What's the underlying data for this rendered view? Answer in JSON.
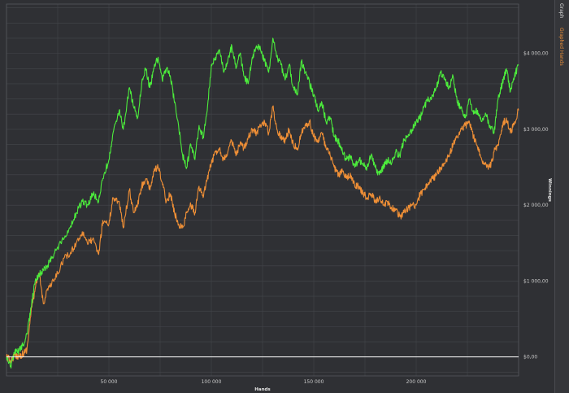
{
  "sidebar": {
    "tabs": [
      {
        "label": "Graph",
        "color": "#d8d8d8"
      },
      {
        "label": "Graphed Hands",
        "color": "#f0923a"
      }
    ]
  },
  "colors": {
    "background": "#2f3034",
    "grid": "#44464b",
    "series_green": "#4cec3c",
    "series_orange": "#ef8f36",
    "zero_line": "#ffffff"
  },
  "chart_data": {
    "type": "line",
    "title": "",
    "xlabel": "Hands",
    "ylabel": "Winnings",
    "xlim": [
      0,
      250000
    ],
    "ylim": [
      -250,
      4650
    ],
    "x_ticks": [
      50000,
      100000,
      150000,
      200000
    ],
    "x_tick_labels": [
      "50 000",
      "100 000",
      "150 000",
      "200 000"
    ],
    "y_ticks": [
      0,
      1000,
      2000,
      3000,
      4000
    ],
    "y_tick_labels": [
      "$0,00",
      "$1 000,00",
      "$2 000,00",
      "$3 000,00",
      "$4 000,00"
    ],
    "grid": true,
    "reference_line_y": 0,
    "series": [
      {
        "color": "#4cec3c",
        "x": [
          0,
          2000,
          4000,
          6000,
          8000,
          10000,
          12000,
          14000,
          16000,
          18000,
          20000,
          22000,
          25000,
          28000,
          31000,
          34000,
          37000,
          40000,
          42000,
          45000,
          47000,
          50000,
          52000,
          55000,
          57000,
          60000,
          62000,
          64000,
          66000,
          68000,
          70000,
          72000,
          74000,
          76000,
          78000,
          80000,
          82000,
          84000,
          86000,
          88000,
          90000,
          92000,
          94000,
          96000,
          98000,
          100000,
          102000,
          104000,
          106000,
          108000,
          110000,
          112000,
          114000,
          116000,
          118000,
          120000,
          122000,
          124000,
          126000,
          128000,
          130000,
          132000,
          134000,
          136000,
          138000,
          140000,
          142000,
          144000,
          146000,
          148000,
          150000,
          152000,
          154000,
          156000,
          158000,
          160000,
          162000,
          164000,
          166000,
          168000,
          170000,
          172000,
          174000,
          176000,
          178000,
          180000,
          182000,
          184000,
          186000,
          188000,
          190000,
          192000,
          194000,
          196000,
          198000,
          200000,
          202000,
          204000,
          206000,
          208000,
          210000,
          212000,
          214000,
          216000,
          218000,
          220000,
          222000,
          224000,
          226000,
          228000,
          230000,
          232000,
          234000,
          236000,
          238000,
          240000,
          242000,
          244000,
          246000,
          248000,
          250000
        ],
        "values": [
          0,
          -120,
          50,
          80,
          150,
          300,
          650,
          1000,
          1100,
          1150,
          1200,
          1300,
          1450,
          1550,
          1700,
          1900,
          2050,
          2000,
          2150,
          2050,
          2350,
          2600,
          2950,
          3250,
          3000,
          3550,
          3300,
          3150,
          3600,
          3800,
          3550,
          3800,
          3950,
          3650,
          3800,
          3700,
          3350,
          3050,
          2650,
          2500,
          2800,
          2600,
          3050,
          2900,
          3250,
          3850,
          3950,
          4050,
          3750,
          3900,
          4100,
          3800,
          4000,
          3700,
          3600,
          3950,
          4100,
          4050,
          3900,
          3750,
          4200,
          3950,
          3850,
          3650,
          3850,
          3550,
          3450,
          3900,
          3750,
          3600,
          3450,
          3250,
          3350,
          3100,
          3150,
          2900,
          2850,
          2700,
          2600,
          2650,
          2500,
          2600,
          2550,
          2500,
          2650,
          2500,
          2400,
          2500,
          2600,
          2550,
          2700,
          2650,
          2850,
          2900,
          3000,
          3100,
          3150,
          3300,
          3400,
          3450,
          3550,
          3750,
          3650,
          3550,
          3700,
          3350,
          3300,
          3150,
          3400,
          3200,
          3250,
          3100,
          3200,
          3050,
          2950,
          3400,
          3600,
          3800,
          3500,
          3700,
          3850
        ]
      },
      {
        "color": "#ef8f36",
        "x": [
          0,
          2000,
          4000,
          6000,
          8000,
          10000,
          12000,
          14000,
          16000,
          18000,
          20000,
          22000,
          25000,
          28000,
          31000,
          34000,
          37000,
          40000,
          42000,
          45000,
          47000,
          50000,
          52000,
          55000,
          57000,
          60000,
          62000,
          64000,
          66000,
          68000,
          70000,
          72000,
          74000,
          76000,
          78000,
          80000,
          82000,
          84000,
          86000,
          88000,
          90000,
          92000,
          94000,
          96000,
          98000,
          100000,
          102000,
          104000,
          106000,
          108000,
          110000,
          112000,
          114000,
          116000,
          118000,
          120000,
          122000,
          124000,
          126000,
          128000,
          130000,
          132000,
          134000,
          136000,
          138000,
          140000,
          142000,
          144000,
          146000,
          148000,
          150000,
          152000,
          154000,
          156000,
          158000,
          160000,
          162000,
          164000,
          166000,
          168000,
          170000,
          172000,
          174000,
          176000,
          178000,
          180000,
          182000,
          184000,
          186000,
          188000,
          190000,
          192000,
          194000,
          196000,
          198000,
          200000,
          202000,
          204000,
          206000,
          208000,
          210000,
          212000,
          214000,
          216000,
          218000,
          220000,
          222000,
          224000,
          226000,
          228000,
          230000,
          232000,
          234000,
          236000,
          238000,
          240000,
          242000,
          244000,
          246000,
          248000,
          250000
        ],
        "values": [
          0,
          -50,
          20,
          10,
          40,
          100,
          600,
          900,
          1100,
          700,
          900,
          950,
          1100,
          1300,
          1350,
          1500,
          1650,
          1500,
          1550,
          1350,
          1800,
          1750,
          2100,
          2050,
          1700,
          2200,
          1900,
          2000,
          2250,
          2350,
          2200,
          2450,
          2500,
          2300,
          2050,
          2150,
          1900,
          1750,
          1700,
          1900,
          2000,
          1900,
          2250,
          2100,
          2350,
          2550,
          2700,
          2750,
          2600,
          2700,
          2850,
          2650,
          2800,
          2750,
          2900,
          3000,
          2950,
          3050,
          3100,
          2950,
          3300,
          3000,
          2900,
          2850,
          3000,
          2800,
          2750,
          2950,
          3050,
          3100,
          2900,
          2850,
          2950,
          2750,
          2650,
          2500,
          2400,
          2450,
          2350,
          2400,
          2250,
          2250,
          2150,
          2100,
          2150,
          2050,
          2100,
          2000,
          2050,
          1950,
          1950,
          1850,
          1900,
          1950,
          2000,
          2000,
          2150,
          2200,
          2300,
          2350,
          2400,
          2500,
          2550,
          2650,
          2800,
          2900,
          3000,
          3050,
          3100,
          2900,
          2750,
          2600,
          2550,
          2500,
          2700,
          2800,
          3050,
          3150,
          2950,
          3100,
          3250
        ]
      }
    ]
  }
}
